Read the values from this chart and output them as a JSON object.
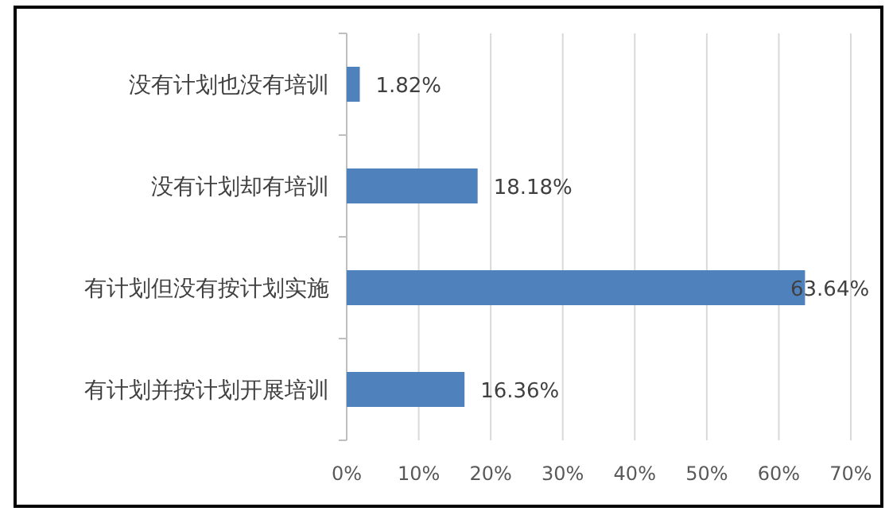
{
  "chart_data": {
    "type": "bar",
    "orientation": "horizontal",
    "categories": [
      "没有计划也没有培训",
      "没有计划却有培训",
      "有计划但没有按计划实施",
      "有计划并按计划开展培训"
    ],
    "values": [
      1.82,
      18.18,
      63.64,
      16.36
    ],
    "color": "#4f81bd",
    "value_labels": [
      "1.82%",
      "18.18%",
      "63.64%",
      "16.36%"
    ],
    "xlim": [
      0,
      70
    ],
    "xticks": [
      {
        "value": 0,
        "label": "0%"
      },
      {
        "value": 10,
        "label": "10%"
      },
      {
        "value": 20,
        "label": "20%"
      },
      {
        "value": 30,
        "label": "30%"
      },
      {
        "value": 40,
        "label": "40%"
      },
      {
        "value": 50,
        "label": "50%"
      },
      {
        "value": 60,
        "label": "60%"
      },
      {
        "value": 70,
        "label": "70%"
      }
    ],
    "grid": "x"
  }
}
